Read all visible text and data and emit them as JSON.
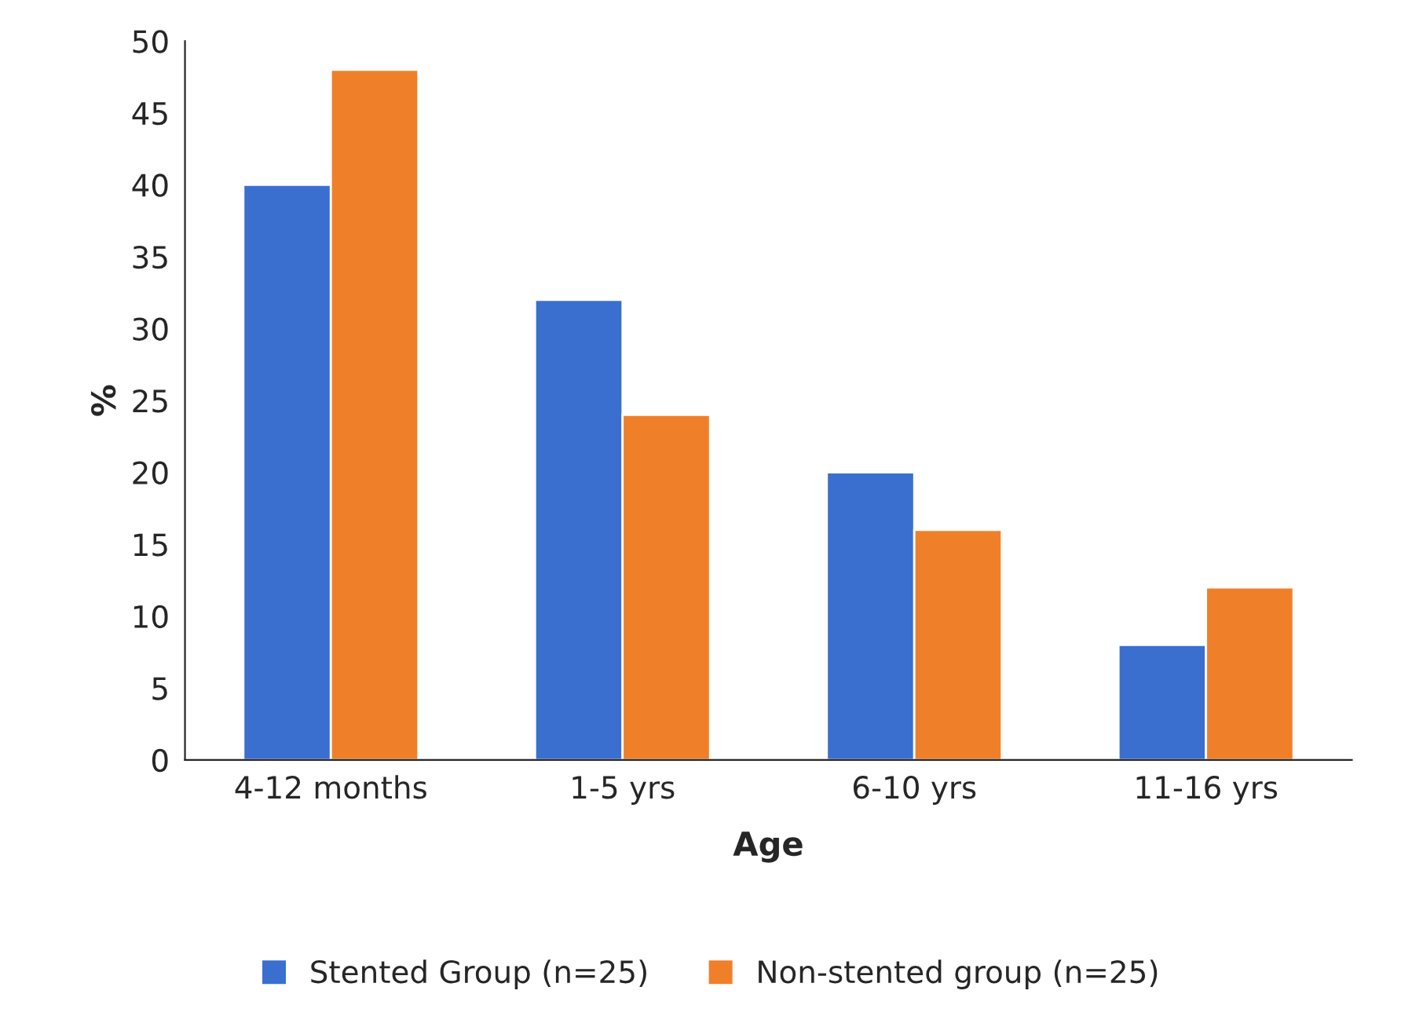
{
  "chart_data": {
    "type": "bar",
    "xlabel": "Age",
    "ylabel": "%",
    "categories": [
      "4-12 months",
      "1-5 yrs",
      "6-10 yrs",
      "11-16 yrs"
    ],
    "series": [
      {
        "name": "Stented Group (n=25)",
        "color": "#3a6fd0",
        "values": [
          40,
          32,
          20,
          8
        ]
      },
      {
        "name": "Non-stented group (n=25)",
        "color": "#f07f2a",
        "values": [
          48,
          24,
          16,
          12
        ]
      }
    ],
    "ylim": [
      0,
      50
    ],
    "yticks": [
      0,
      5,
      10,
      15,
      20,
      25,
      30,
      35,
      40,
      45,
      50
    ],
    "legend": "bottom"
  }
}
